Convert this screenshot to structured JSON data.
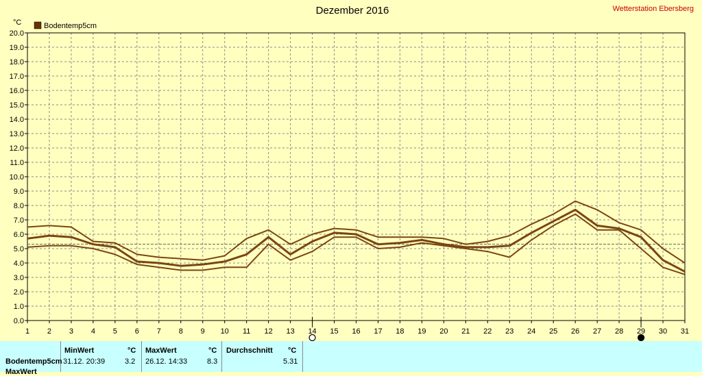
{
  "header": {
    "title": "Dezember 2016",
    "station": "Wetterstation Ebersberg",
    "unit_label": "°C",
    "legend_label": "Bodentemp5cm",
    "legend_color": "#663300"
  },
  "colors": {
    "background": "#ffffc0",
    "grid": "#8a8a8a",
    "line": "#7a4510",
    "avg_line": "#666666",
    "footer_bg": "#c8ffff",
    "station_text": "#cc0000"
  },
  "chart_data": {
    "type": "line",
    "title": "Dezember 2016",
    "ylabel": "°C",
    "x": [
      1,
      2,
      3,
      4,
      5,
      6,
      7,
      8,
      9,
      10,
      11,
      12,
      13,
      14,
      15,
      16,
      17,
      18,
      19,
      20,
      21,
      22,
      23,
      24,
      25,
      26,
      27,
      28,
      29,
      30,
      31
    ],
    "xlim": [
      1,
      31
    ],
    "ylim": [
      0,
      20
    ],
    "y_ticks": [
      "0.0",
      "1.0",
      "2.0",
      "3.0",
      "4.0",
      "5.0",
      "6.0",
      "7.0",
      "8.0",
      "9.0",
      "10.0",
      "11.0",
      "12.0",
      "13.0",
      "14.0",
      "15.0",
      "16.0",
      "17.0",
      "18.0",
      "19.0",
      "20.0"
    ],
    "x_ticks": [
      "1",
      "2",
      "3",
      "4",
      "5",
      "6",
      "7",
      "8",
      "9",
      "10",
      "11",
      "12",
      "13",
      "14",
      "15",
      "16",
      "17",
      "18",
      "19",
      "20",
      "21",
      "22",
      "23",
      "24",
      "25",
      "26",
      "27",
      "28",
      "29",
      "30",
      "31"
    ],
    "grid": true,
    "legend": "top-left",
    "average": 5.31,
    "series": [
      {
        "name": "Bodentemp5cm",
        "role": "max",
        "values": [
          6.5,
          6.6,
          6.5,
          5.5,
          5.4,
          4.6,
          4.4,
          4.3,
          4.2,
          4.5,
          5.7,
          6.3,
          5.3,
          6.0,
          6.4,
          6.3,
          5.8,
          5.8,
          5.8,
          5.7,
          5.3,
          5.5,
          5.9,
          6.7,
          7.4,
          8.3,
          7.7,
          6.8,
          6.3,
          5.0,
          4.0
        ]
      },
      {
        "role": "mean",
        "values": [
          5.7,
          5.9,
          5.8,
          5.3,
          5.1,
          4.1,
          4.0,
          3.8,
          3.9,
          4.1,
          4.6,
          5.8,
          4.6,
          5.5,
          6.1,
          6.0,
          5.3,
          5.4,
          5.6,
          5.3,
          5.1,
          5.1,
          5.2,
          6.1,
          6.9,
          7.7,
          6.6,
          6.4,
          5.8,
          4.2,
          3.4
        ]
      },
      {
        "role": "min",
        "values": [
          5.1,
          5.2,
          5.2,
          5.0,
          4.6,
          3.9,
          3.7,
          3.5,
          3.5,
          3.7,
          3.7,
          5.3,
          4.2,
          4.8,
          5.8,
          5.8,
          5.0,
          5.1,
          5.4,
          5.2,
          5.0,
          4.8,
          4.4,
          5.6,
          6.6,
          7.4,
          6.3,
          6.3,
          5.0,
          3.7,
          3.2
        ]
      }
    ],
    "moon_markers": [
      {
        "day": 14,
        "phase": "full"
      },
      {
        "day": 29,
        "phase": "new"
      }
    ]
  },
  "footer": {
    "series_name": "Bodentemp5cm",
    "row2_label": "MaxWert",
    "min": {
      "label": "MinWert",
      "unit": "°C",
      "time": "31.12.  20:39",
      "value": "3.2"
    },
    "max": {
      "label": "MaxWert",
      "unit": "°C",
      "time": "26.12.  14:33",
      "value": "8.3"
    },
    "avg": {
      "label": "Durchschnitt",
      "unit": "°C",
      "value": "5.31"
    }
  }
}
